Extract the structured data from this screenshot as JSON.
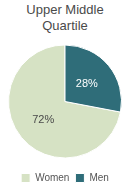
{
  "chart_data": {
    "type": "pie",
    "title": "Upper Middle Quartile",
    "categories": [
      "Women",
      "Men"
    ],
    "values": [
      72,
      28
    ],
    "value_labels": [
      "72%",
      "28%"
    ],
    "colors": [
      "#d6e2c4",
      "#2f6d79"
    ],
    "legend": "bottom",
    "data_labels": true
  }
}
